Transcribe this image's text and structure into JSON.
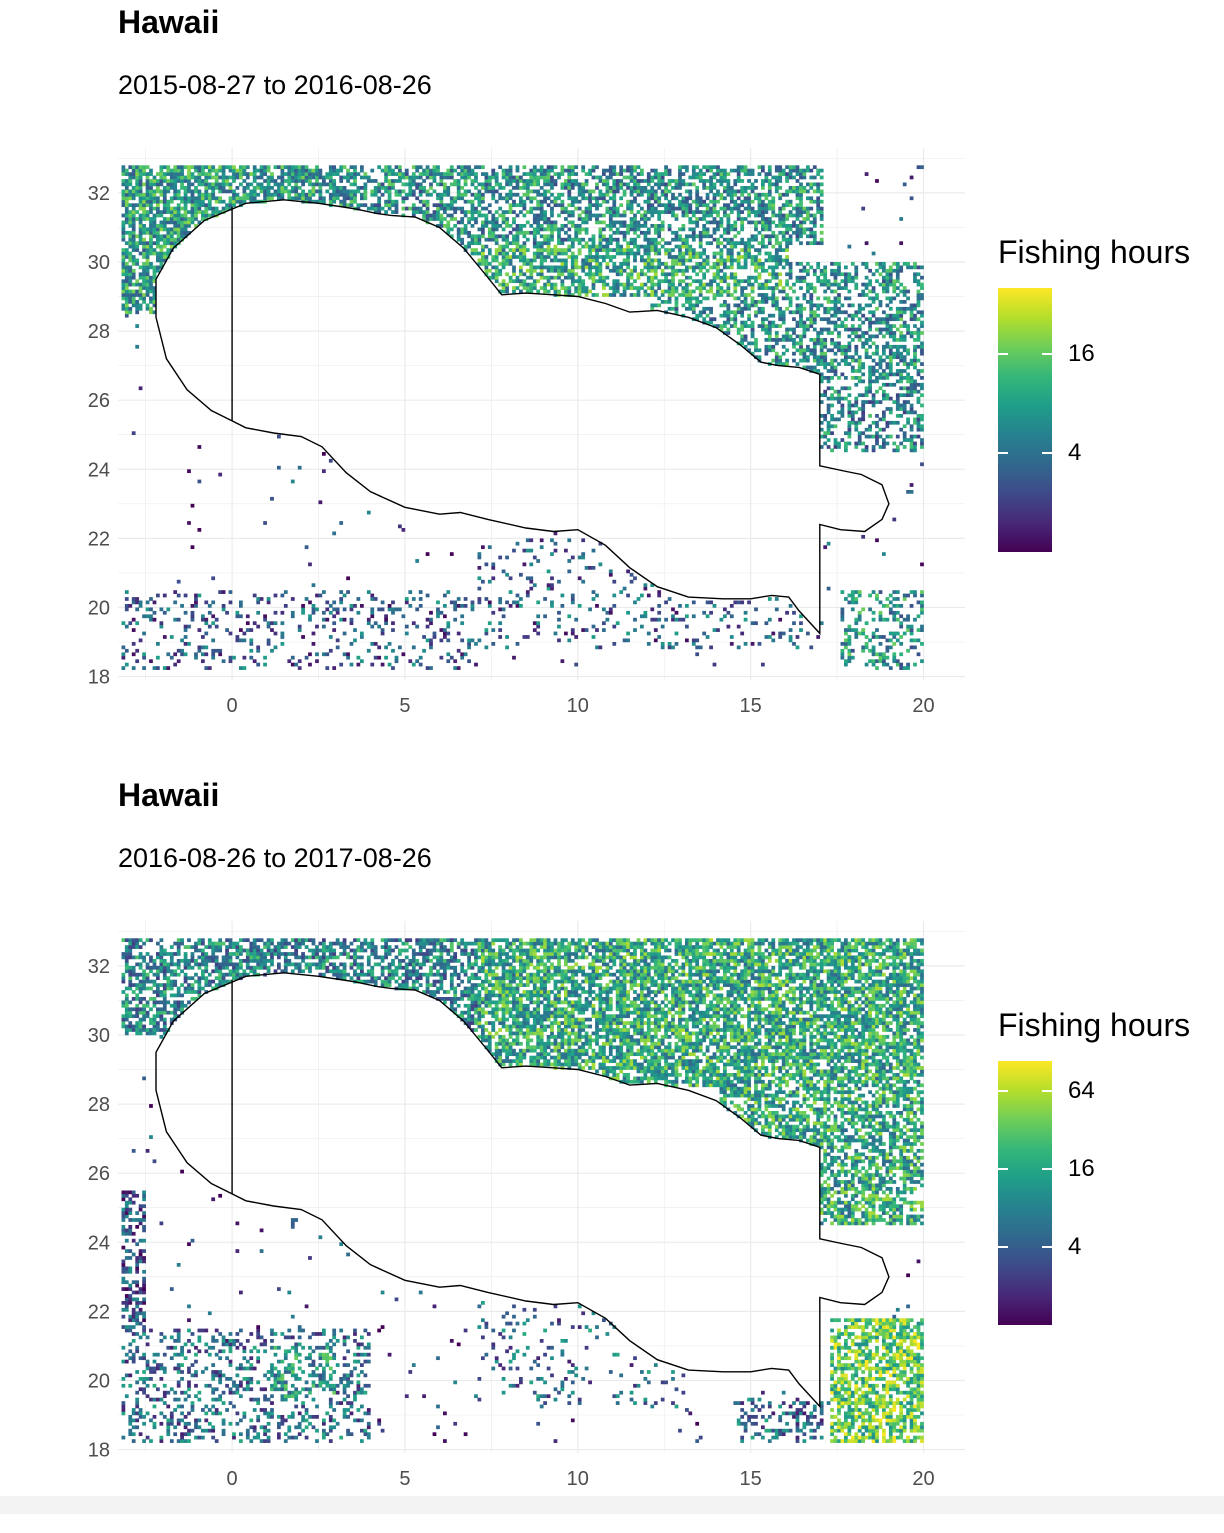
{
  "chart_data": [
    {
      "type": "heatmap",
      "title": "Hawaii",
      "subtitle": "2015-08-27 to 2016-08-26",
      "xlabel": "",
      "ylabel": "",
      "xlim": [
        -3.3,
        21.2
      ],
      "ylim": [
        17.9,
        33.3
      ],
      "x_ticks": [
        0,
        5,
        10,
        15,
        20
      ],
      "y_ticks": [
        18,
        20,
        22,
        24,
        26,
        28,
        30,
        32
      ],
      "grid": true,
      "legend": {
        "title": "Fishing hours",
        "placement": "right",
        "scale": "log",
        "range": [
          1,
          40
        ],
        "ticks": [
          4,
          16
        ]
      },
      "region_outline": [
        [
          0,
          25.4
        ],
        [
          0.4,
          25.2
        ],
        [
          1.2,
          25.05
        ],
        [
          2,
          24.95
        ],
        [
          2.6,
          24.65
        ],
        [
          3.3,
          23.9
        ],
        [
          4,
          23.35
        ],
        [
          5,
          22.9
        ],
        [
          6,
          22.7
        ],
        [
          6.6,
          22.75
        ],
        [
          7.4,
          22.55
        ],
        [
          8.5,
          22.3
        ],
        [
          9.3,
          22.2
        ],
        [
          10,
          22.25
        ],
        [
          10.8,
          21.8
        ],
        [
          11.5,
          21.15
        ],
        [
          12.3,
          20.6
        ],
        [
          13.2,
          20.3
        ],
        [
          14.2,
          20.25
        ],
        [
          15,
          20.25
        ],
        [
          15.6,
          20.35
        ],
        [
          16.1,
          20.3
        ],
        [
          16.4,
          19.9
        ],
        [
          17,
          19.25
        ],
        [
          17,
          22.4
        ],
        [
          17.6,
          22.25
        ],
        [
          18.3,
          22.2
        ],
        [
          18.8,
          22.55
        ],
        [
          19,
          23
        ],
        [
          18.8,
          23.55
        ],
        [
          18.2,
          23.85
        ],
        [
          17.7,
          23.95
        ],
        [
          17,
          24.1
        ],
        [
          17,
          26.75
        ],
        [
          16.4,
          26.95
        ],
        [
          15.8,
          27
        ],
        [
          15.3,
          27.1
        ],
        [
          14.7,
          27.6
        ],
        [
          14,
          28.1
        ],
        [
          13.2,
          28.4
        ],
        [
          12.3,
          28.6
        ],
        [
          11.5,
          28.55
        ],
        [
          10.8,
          28.8
        ],
        [
          10,
          29
        ],
        [
          9.3,
          29.05
        ],
        [
          8.5,
          29.1
        ],
        [
          7.8,
          29.05
        ],
        [
          7.4,
          29.55
        ],
        [
          6.7,
          30.4
        ],
        [
          6,
          31
        ],
        [
          5.3,
          31.3
        ],
        [
          4.6,
          31.35
        ],
        [
          4.2,
          31.4
        ],
        [
          3.5,
          31.55
        ],
        [
          2.5,
          31.7
        ],
        [
          1.5,
          31.8
        ],
        [
          0.4,
          31.7
        ],
        [
          -0.8,
          31.2
        ],
        [
          -1.7,
          30.4
        ],
        [
          -2.2,
          29.5
        ],
        [
          -2.2,
          28.4
        ],
        [
          -1.9,
          27.2
        ],
        [
          -1.3,
          26.3
        ],
        [
          -0.6,
          25.7
        ],
        [
          0,
          25.4
        ]
      ],
      "divider_line": [
        [
          0,
          25.4
        ],
        [
          0,
          31.6
        ]
      ],
      "hotspots": [
        {
          "x": [
            -3.2,
            2.5
          ],
          "y": [
            28.5,
            32.8
          ],
          "density": 0.75,
          "intensity": 0.55
        },
        {
          "x": [
            2.5,
            17
          ],
          "y": [
            30.5,
            32.8
          ],
          "density": 0.6,
          "intensity": 0.5
        },
        {
          "x": [
            6.5,
            16
          ],
          "y": [
            29,
            31
          ],
          "density": 0.6,
          "intensity": 0.6
        },
        {
          "x": [
            12,
            20
          ],
          "y": [
            26.5,
            30
          ],
          "density": 0.5,
          "intensity": 0.5
        },
        {
          "x": [
            15.5,
            20
          ],
          "y": [
            24.5,
            27
          ],
          "density": 0.45,
          "intensity": 0.45
        },
        {
          "x": [
            -3.2,
            7
          ],
          "y": [
            18,
            20.5
          ],
          "density": 0.18,
          "intensity": 0.3
        },
        {
          "x": [
            7,
            17
          ],
          "y": [
            18.8,
            22
          ],
          "density": 0.12,
          "intensity": 0.3
        },
        {
          "x": [
            17.5,
            20
          ],
          "y": [
            18,
            20.5
          ],
          "density": 0.35,
          "intensity": 0.5
        }
      ]
    },
    {
      "type": "heatmap",
      "title": "Hawaii",
      "subtitle": "2016-08-26 to 2017-08-26",
      "xlabel": "",
      "ylabel": "",
      "xlim": [
        -3.3,
        21.2
      ],
      "ylim": [
        17.9,
        33.3
      ],
      "x_ticks": [
        0,
        5,
        10,
        15,
        20
      ],
      "y_ticks": [
        18,
        20,
        22,
        24,
        26,
        28,
        30,
        32
      ],
      "grid": true,
      "legend": {
        "title": "Fishing hours",
        "placement": "right",
        "scale": "log",
        "range": [
          1,
          110
        ],
        "ticks": [
          4,
          16,
          64
        ]
      },
      "region_outline": [
        [
          0,
          25.4
        ],
        [
          0.4,
          25.2
        ],
        [
          1.2,
          25.05
        ],
        [
          2,
          24.95
        ],
        [
          2.6,
          24.65
        ],
        [
          3.3,
          23.9
        ],
        [
          4,
          23.35
        ],
        [
          5,
          22.9
        ],
        [
          6,
          22.7
        ],
        [
          6.6,
          22.75
        ],
        [
          7.4,
          22.55
        ],
        [
          8.5,
          22.3
        ],
        [
          9.3,
          22.2
        ],
        [
          10,
          22.25
        ],
        [
          10.8,
          21.8
        ],
        [
          11.5,
          21.15
        ],
        [
          12.3,
          20.6
        ],
        [
          13.2,
          20.3
        ],
        [
          14.2,
          20.25
        ],
        [
          15,
          20.25
        ],
        [
          15.6,
          20.35
        ],
        [
          16.1,
          20.3
        ],
        [
          16.4,
          19.9
        ],
        [
          17,
          19.25
        ],
        [
          17,
          22.4
        ],
        [
          17.6,
          22.25
        ],
        [
          18.3,
          22.2
        ],
        [
          18.8,
          22.55
        ],
        [
          19,
          23
        ],
        [
          18.8,
          23.55
        ],
        [
          18.2,
          23.85
        ],
        [
          17.7,
          23.95
        ],
        [
          17,
          24.1
        ],
        [
          17,
          26.75
        ],
        [
          16.4,
          26.95
        ],
        [
          15.8,
          27
        ],
        [
          15.3,
          27.1
        ],
        [
          14.7,
          27.6
        ],
        [
          14,
          28.1
        ],
        [
          13.2,
          28.4
        ],
        [
          12.3,
          28.6
        ],
        [
          11.5,
          28.55
        ],
        [
          10.8,
          28.8
        ],
        [
          10,
          29
        ],
        [
          9.3,
          29.05
        ],
        [
          8.5,
          29.1
        ],
        [
          7.8,
          29.05
        ],
        [
          7.4,
          29.55
        ],
        [
          6.7,
          30.4
        ],
        [
          6,
          31
        ],
        [
          5.3,
          31.3
        ],
        [
          4.6,
          31.35
        ],
        [
          4.2,
          31.4
        ],
        [
          3.5,
          31.55
        ],
        [
          2.5,
          31.7
        ],
        [
          1.5,
          31.8
        ],
        [
          0.4,
          31.7
        ],
        [
          -0.8,
          31.2
        ],
        [
          -1.7,
          30.4
        ],
        [
          -2.2,
          29.5
        ],
        [
          -2.2,
          28.4
        ],
        [
          -1.9,
          27.2
        ],
        [
          -1.3,
          26.3
        ],
        [
          -0.6,
          25.7
        ],
        [
          0,
          25.4
        ]
      ],
      "divider_line": [
        [
          0,
          25.4
        ],
        [
          0,
          31.6
        ]
      ],
      "hotspots": [
        {
          "x": [
            -3.2,
            8
          ],
          "y": [
            30,
            32.8
          ],
          "density": 0.65,
          "intensity": 0.45
        },
        {
          "x": [
            7,
            20
          ],
          "y": [
            28.5,
            32.8
          ],
          "density": 0.75,
          "intensity": 0.6
        },
        {
          "x": [
            14,
            20
          ],
          "y": [
            24.5,
            29
          ],
          "density": 0.65,
          "intensity": 0.6
        },
        {
          "x": [
            -3.2,
            -2.5
          ],
          "y": [
            21.5,
            25.5
          ],
          "density": 0.5,
          "intensity": 0.25
        },
        {
          "x": [
            -3.2,
            4
          ],
          "y": [
            18.2,
            21.5
          ],
          "density": 0.3,
          "intensity": 0.35
        },
        {
          "x": [
            1,
            3
          ],
          "y": [
            19.5,
            21
          ],
          "density": 0.45,
          "intensity": 0.5
        },
        {
          "x": [
            17.2,
            20
          ],
          "y": [
            18.2,
            21.8
          ],
          "density": 0.7,
          "intensity": 0.75
        },
        {
          "x": [
            14.5,
            17
          ],
          "y": [
            18.2,
            19.5
          ],
          "density": 0.35,
          "intensity": 0.35
        },
        {
          "x": [
            7,
            13
          ],
          "y": [
            19.2,
            22.3
          ],
          "density": 0.1,
          "intensity": 0.35
        }
      ]
    }
  ]
}
